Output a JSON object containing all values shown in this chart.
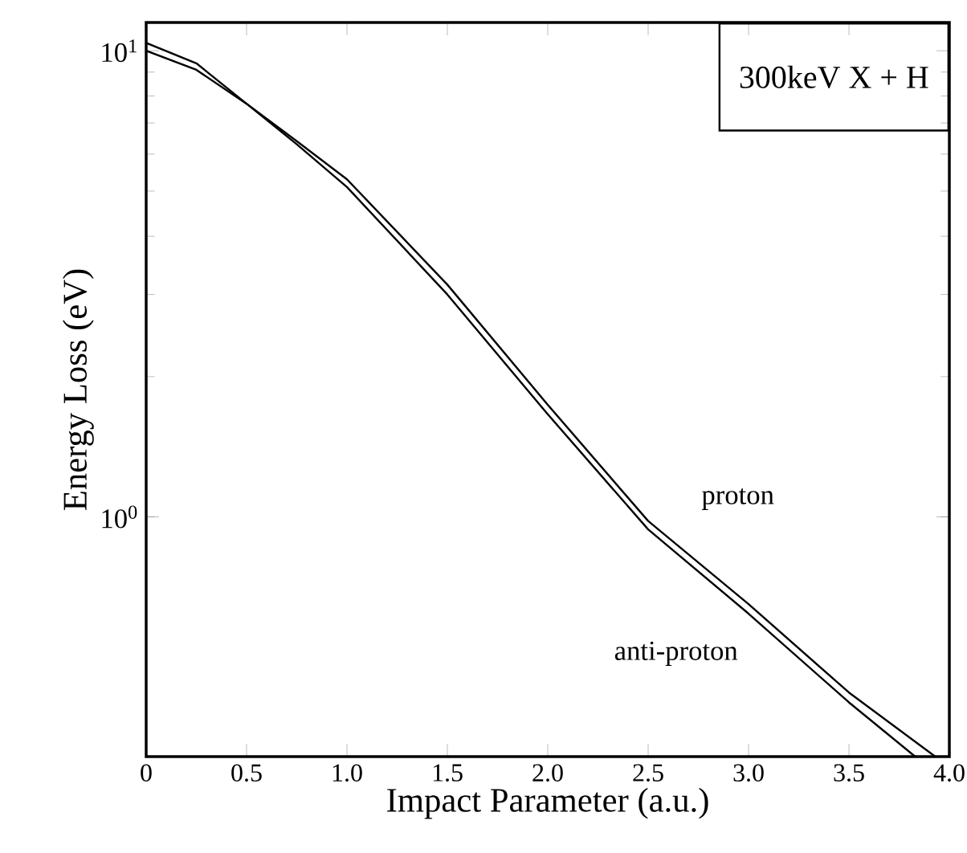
{
  "chart_data": {
    "type": "line",
    "xlabel": "Impact Parameter (a.u.)",
    "ylabel": "Energy Loss (eV)",
    "annotations": [
      "300keV X + H"
    ],
    "x": [
      0,
      0.25,
      0.5,
      0.75,
      1.0,
      1.5,
      2.0,
      2.5,
      3.0,
      3.5,
      3.93
    ],
    "series": [
      {
        "name": "proton",
        "color": "#000000",
        "values": [
          10.0,
          9.1,
          7.7,
          6.4,
          5.3,
          3.15,
          1.74,
          0.98,
          0.65,
          0.42,
          0.306
        ]
      },
      {
        "name": "anti-proton",
        "color": "#000000",
        "x": [
          0,
          0.25,
          0.5,
          0.75,
          1.0,
          1.5,
          2.0,
          2.5,
          3.0,
          3.5,
          3.83
        ],
        "values": [
          10.4,
          9.4,
          7.7,
          6.3,
          5.1,
          3.0,
          1.66,
          0.94,
          0.62,
          0.4,
          0.306
        ]
      }
    ],
    "log": "y",
    "legend": false,
    "marker": "none",
    "line_style": "solid",
    "grid": false,
    "xlim": [
      0,
      4.0
    ],
    "ylim": [
      0.306,
      11.5
    ],
    "xticks": [
      0,
      0.5,
      {
        "value": 1.0,
        "label": "1.0"
      },
      1.5,
      {
        "value": 2.0,
        "label": "2.0"
      },
      2.5,
      {
        "value": 3.0,
        "label": "3.0"
      },
      3.5,
      {
        "value": 4.0,
        "label": "4.0"
      }
    ],
    "yticks": [
      {
        "value": 1,
        "label": "10$^{0}$"
      },
      {
        "value": 10,
        "label": "10$^{1}$"
      }
    ]
  }
}
